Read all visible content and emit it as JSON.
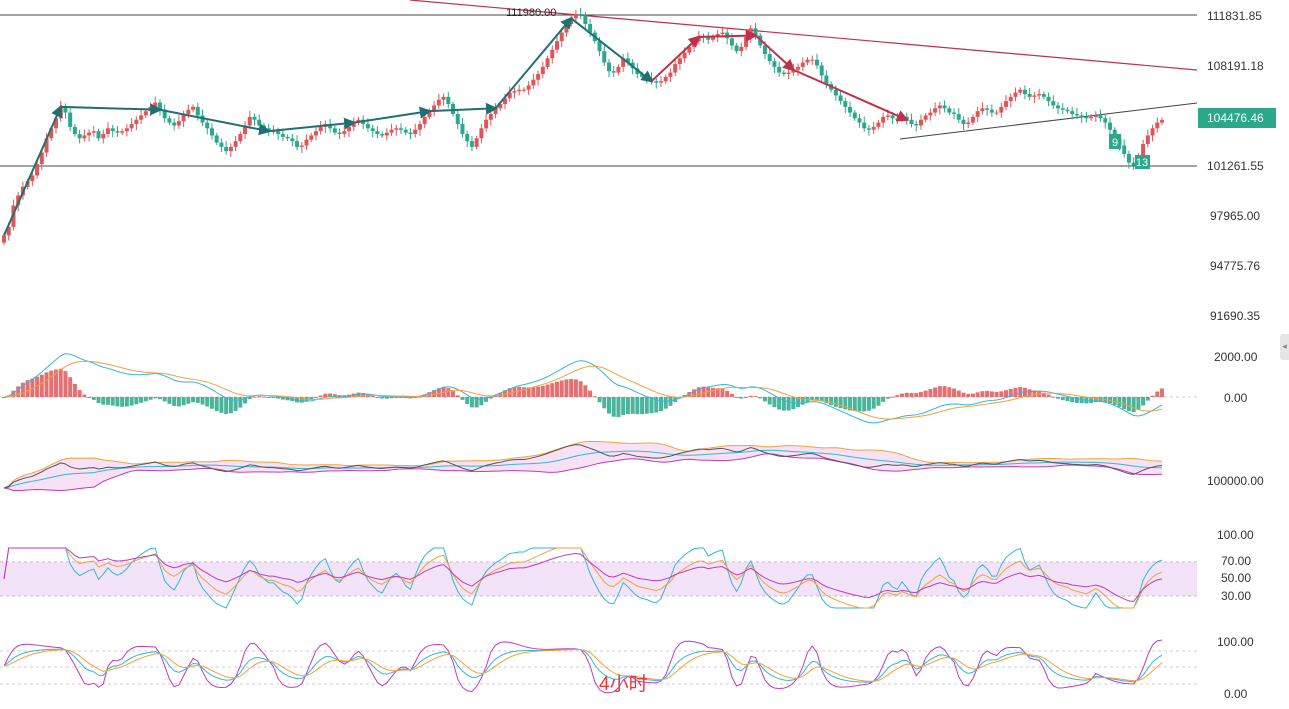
{
  "chart_data": {
    "type": "candlestick",
    "main_axis_labels": [
      "111831.85",
      "108191.18",
      "104476.46",
      "101261.55",
      "97965.00",
      "94775.76",
      "91690.35"
    ],
    "main_axis_values": [
      111831.85,
      108191.18,
      104476.46,
      101261.55,
      97965.0,
      94775.76,
      91690.35
    ],
    "current_price": "104476.46",
    "current_price_value": 104476.46,
    "peak_label": "111980.00",
    "peak_value": 111980.0,
    "horizontal_levels": [
      111831.85,
      101261.55
    ],
    "td_counts": [
      "9",
      "13"
    ],
    "timeframe_label": "4小时",
    "macd_axis_labels": [
      "2000.00",
      "0.00"
    ],
    "boll_axis_labels": [
      "100000.00"
    ],
    "rsi_axis_labels": [
      "100.00",
      "70.00",
      "50.00",
      "30.00"
    ],
    "kdj_axis_labels": [
      "100.00",
      "0.00"
    ],
    "close_series": [
      96400,
      97000,
      98500,
      99200,
      99800,
      100200,
      100600,
      101400,
      102200,
      103200,
      103900,
      104600,
      105400,
      105000,
      104000,
      103500,
      103200,
      103400,
      103600,
      103700,
      103200,
      103500,
      103900,
      103700,
      103600,
      103700,
      103900,
      104200,
      104500,
      104800,
      105100,
      105400,
      105700,
      105200,
      104600,
      104300,
      104100,
      104400,
      104900,
      105200,
      105400,
      104800,
      104300,
      103900,
      103400,
      102900,
      102600,
      102300,
      102600,
      103000,
      103500,
      104100,
      104700,
      104500,
      104100,
      103900,
      103700,
      103700,
      103500,
      103300,
      103200,
      103000,
      102600,
      102700,
      103100,
      103400,
      103700,
      104000,
      104200,
      103900,
      103600,
      103500,
      103700,
      104000,
      104300,
      104500,
      104200,
      103900,
      103700,
      103500,
      103400,
      103600,
      103800,
      103900,
      103800,
      103600,
      103500,
      103800,
      104200,
      104700,
      105100,
      105500,
      105900,
      106100,
      105600,
      104900,
      104200,
      103500,
      103000,
      102600,
      103200,
      103900,
      104500,
      104900,
      105300,
      105600,
      106000,
      106400,
      106500,
      106600,
      106600,
      106900,
      107300,
      107700,
      108200,
      108800,
      109400,
      110000,
      110600,
      111200,
      111600,
      111900,
      111800,
      111200,
      110600,
      110000,
      109300,
      108500,
      107900,
      107800,
      108200,
      108800,
      108500,
      108100,
      107700,
      107500,
      107400,
      107200,
      107100,
      107200,
      107500,
      107800,
      108400,
      108800,
      109200,
      109600,
      110000,
      110300,
      110300,
      110100,
      110300,
      110500,
      110600,
      110200,
      109700,
      109300,
      109600,
      110300,
      110900,
      110400,
      109700,
      109100,
      108600,
      108200,
      107800,
      107700,
      107800,
      108000,
      108200,
      108500,
      108700,
      108700,
      108300,
      107600,
      107000,
      106600,
      106200,
      105800,
      105400,
      105000,
      104600,
      104300,
      103900,
      103800,
      104000,
      104300,
      104700,
      104800,
      104600,
      104500,
      104700,
      104500,
      104200,
      104100,
      104500,
      104800,
      105000,
      105300,
      105500,
      105300,
      105000,
      104900,
      104500,
      104200,
      104300,
      104700,
      105100,
      105300,
      105200,
      105000,
      105000,
      105400,
      105800,
      106100,
      106400,
      106600,
      106300,
      106100,
      106200,
      106300,
      106100,
      105800,
      105500,
      105300,
      105200,
      105100,
      104900,
      104800,
      104700,
      104600,
      104700,
      104800,
      104600,
      104300,
      103800,
      103200,
      102700,
      102100,
      101500,
      101300,
      102000,
      102800,
      103400,
      103900,
      104300,
      104476
    ]
  }
}
